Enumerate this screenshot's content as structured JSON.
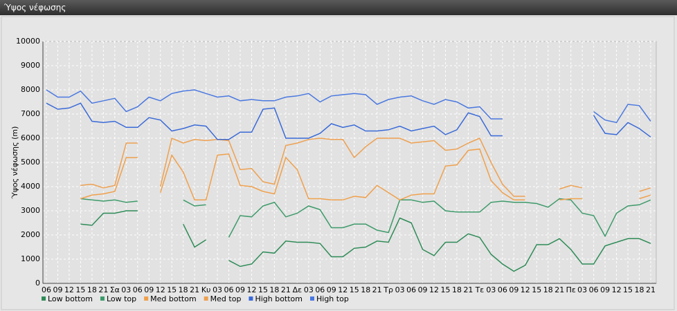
{
  "window_title": "Ύψος νέφωσης",
  "chart_data": {
    "type": "line",
    "ylabel": "Ύψος νέφωσης (m)",
    "categories": [
      "06",
      "09",
      "12",
      "15",
      "18",
      "21",
      "Σα",
      "03",
      "06",
      "09",
      "12",
      "15",
      "18",
      "21",
      "Κυ",
      "03",
      "06",
      "09",
      "12",
      "15",
      "18",
      "21",
      "Δε",
      "03",
      "06",
      "09",
      "12",
      "15",
      "18",
      "21",
      "Τρ",
      "03",
      "06",
      "09",
      "12",
      "15",
      "18",
      "21",
      "Τε",
      "03",
      "06",
      "09",
      "12",
      "15",
      "18",
      "21",
      "Πε",
      "03",
      "06",
      "09",
      "12",
      "15",
      "18",
      "21"
    ],
    "ylim": [
      0,
      10000
    ],
    "yticks": [
      0,
      1000,
      2000,
      3000,
      4000,
      5000,
      6000,
      7000,
      8000,
      9000,
      10000
    ],
    "grid": true,
    "series": [
      {
        "name": "Low bottom",
        "color": "#2e8b57",
        "values": [
          null,
          null,
          null,
          2450,
          2400,
          2900,
          2900,
          3000,
          3000,
          null,
          null,
          null,
          2450,
          1500,
          1800,
          null,
          950,
          700,
          800,
          1300,
          1250,
          1750,
          1700,
          1700,
          1650,
          1100,
          1100,
          1450,
          1500,
          1750,
          1700,
          2700,
          2500,
          1400,
          1150,
          1700,
          1700,
          2050,
          1900,
          1200,
          800,
          500,
          750,
          1600,
          1600,
          1850,
          1400,
          800,
          800,
          1550,
          1700,
          1850,
          1850,
          1650
        ]
      },
      {
        "name": "Low top",
        "color": "#3d9a6a",
        "values": [
          null,
          null,
          null,
          3500,
          3450,
          3400,
          3450,
          3350,
          3400,
          null,
          null,
          null,
          3450,
          3200,
          3250,
          null,
          1900,
          2800,
          2750,
          3200,
          3350,
          2750,
          2900,
          3200,
          3050,
          2300,
          2300,
          2450,
          2450,
          2200,
          2100,
          3450,
          3450,
          3350,
          3400,
          3000,
          2950,
          2950,
          2950,
          3350,
          3400,
          3350,
          3350,
          3300,
          3150,
          3500,
          3450,
          2900,
          2800,
          1950,
          2900,
          3200,
          3250,
          3450
        ]
      },
      {
        "name": "Med bottom",
        "color": "#f0a04b",
        "values": [
          null,
          null,
          null,
          3500,
          3650,
          3700,
          3800,
          5200,
          5200,
          null,
          3750,
          5300,
          4600,
          3450,
          3450,
          5300,
          5350,
          4050,
          4000,
          3800,
          3700,
          5200,
          4700,
          3500,
          3500,
          3450,
          3450,
          3600,
          3550,
          4050,
          3750,
          3450,
          3650,
          3700,
          3700,
          4850,
          4900,
          5500,
          5550,
          4250,
          3750,
          3450,
          3450,
          null,
          null,
          3450,
          3500,
          3500,
          null,
          null,
          null,
          null,
          3500,
          3650
        ]
      },
      {
        "name": "Med top",
        "color": "#eea050",
        "values": [
          null,
          null,
          null,
          4050,
          4100,
          3950,
          4050,
          5800,
          5800,
          null,
          4000,
          6000,
          5800,
          5950,
          5900,
          5950,
          5900,
          4700,
          4750,
          4200,
          4100,
          5700,
          5800,
          5950,
          6000,
          5950,
          5950,
          5200,
          5650,
          6000,
          6000,
          6000,
          5800,
          5850,
          5900,
          5500,
          5550,
          5800,
          6000,
          5000,
          4100,
          3600,
          3600,
          null,
          null,
          3900,
          4050,
          3950,
          null,
          null,
          null,
          null,
          3800,
          3950
        ]
      },
      {
        "name": "High bottom",
        "color": "#3a6ad8",
        "values": [
          7450,
          7200,
          7250,
          7450,
          6700,
          6650,
          6700,
          6450,
          6450,
          6850,
          6750,
          6300,
          6400,
          6550,
          6500,
          5950,
          5950,
          6250,
          6250,
          7200,
          7250,
          6000,
          6000,
          6000,
          6200,
          6600,
          6450,
          6550,
          6300,
          6300,
          6350,
          6500,
          6300,
          6400,
          6500,
          6150,
          6350,
          7050,
          6900,
          6100,
          6100,
          null,
          null,
          null,
          null,
          null,
          null,
          null,
          6950,
          6200,
          6150,
          6650,
          6400,
          6050
        ]
      },
      {
        "name": "High top",
        "color": "#4a78e0",
        "values": [
          8000,
          7700,
          7700,
          7950,
          7450,
          7550,
          7650,
          7100,
          7300,
          7700,
          7550,
          7850,
          7950,
          8000,
          7850,
          7700,
          7750,
          7550,
          7600,
          7550,
          7550,
          7700,
          7750,
          7850,
          7500,
          7750,
          7800,
          7850,
          7800,
          7400,
          7600,
          7700,
          7750,
          7550,
          7400,
          7600,
          7500,
          7250,
          7300,
          6800,
          6800,
          null,
          null,
          null,
          null,
          null,
          null,
          null,
          7100,
          6750,
          6650,
          7400,
          7350,
          6700
        ]
      }
    ]
  }
}
